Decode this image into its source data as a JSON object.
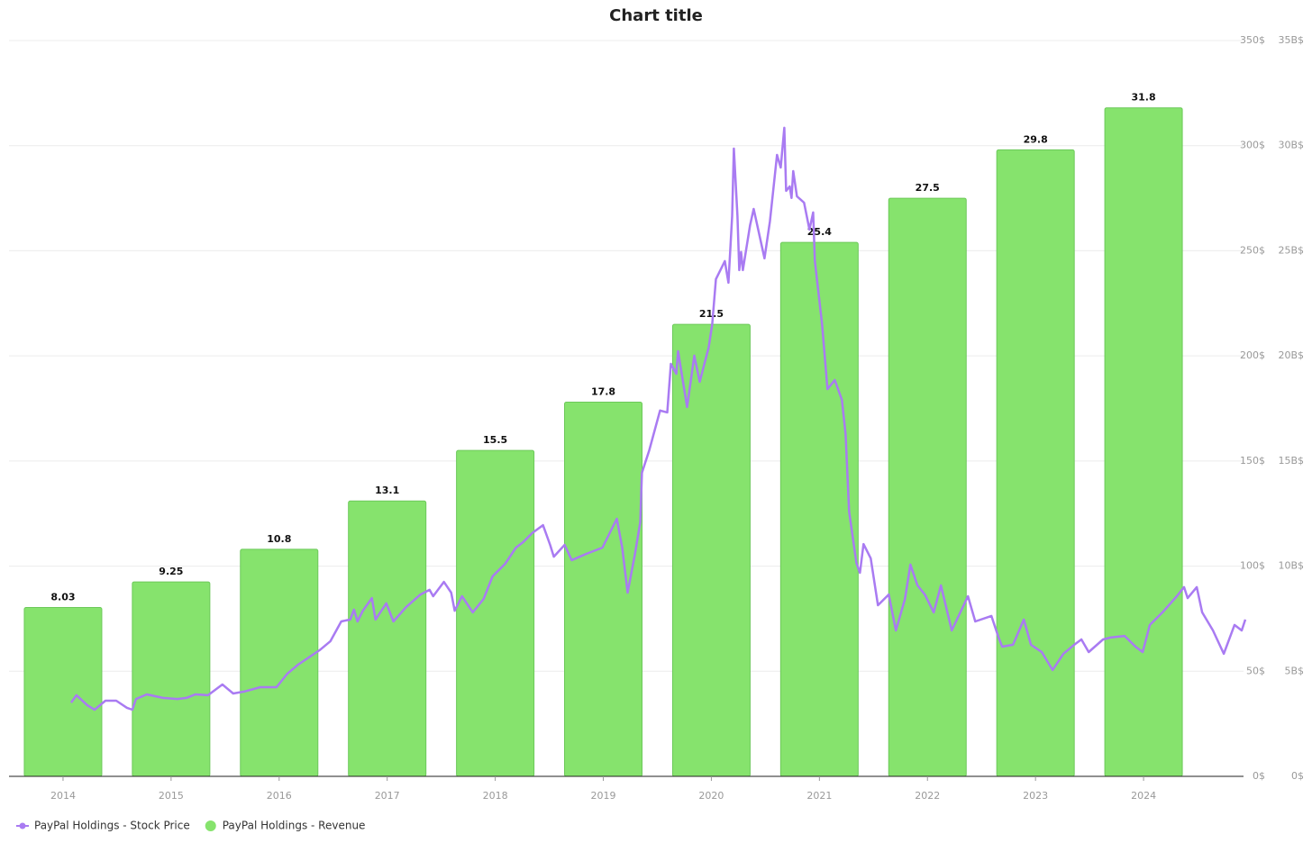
{
  "chart_data": {
    "type": "combo",
    "title": "Chart title",
    "xlim": [
      2013.5,
      2024.925
    ],
    "xticks": [
      2014,
      2015,
      2016,
      2017,
      2018,
      2019,
      2020,
      2021,
      2022,
      2023,
      2024
    ],
    "ylim": [
      0,
      350
    ],
    "yticks": [
      {
        "value": 0,
        "label": "0$"
      },
      {
        "value": 50,
        "label": "50$"
      },
      {
        "value": 100,
        "label": "100$"
      },
      {
        "value": 150,
        "label": "150$"
      },
      {
        "value": 200,
        "label": "200$"
      },
      {
        "value": 250,
        "label": "250$"
      },
      {
        "value": 300,
        "label": "300$"
      },
      {
        "value": 350,
        "label": "350$"
      }
    ],
    "y2lim": [
      0,
      35
    ],
    "y2ticks": [
      {
        "value": 0,
        "label": "0$"
      },
      {
        "value": 5,
        "label": "5B$"
      },
      {
        "value": 10,
        "label": "10B$"
      },
      {
        "value": 15,
        "label": "15B$"
      },
      {
        "value": 20,
        "label": "20B$"
      },
      {
        "value": 25,
        "label": "25B$"
      },
      {
        "value": 30,
        "label": "30B$"
      },
      {
        "value": 35,
        "label": "35B$"
      }
    ],
    "grid": true,
    "legend": "bottom-left",
    "series": [
      {
        "name": "PayPal Holdings - Stock Price",
        "type": "line",
        "axis": "y",
        "color": "#a97bf2",
        "x": [
          2014.075,
          2014.125,
          2014.225,
          2014.292,
          2014.392,
          2014.492,
          2014.592,
          2014.642,
          2014.675,
          2014.775,
          2014.925,
          2015.058,
          2015.142,
          2015.225,
          2015.342,
          2015.475,
          2015.575,
          2015.675,
          2015.825,
          2015.975,
          2016.075,
          2016.175,
          2016.275,
          2016.375,
          2016.475,
          2016.575,
          2016.658,
          2016.692,
          2016.725,
          2016.775,
          2016.858,
          2016.892,
          2016.992,
          2017.058,
          2017.175,
          2017.308,
          2017.392,
          2017.425,
          2017.525,
          2017.592,
          2017.625,
          2017.692,
          2017.792,
          2017.892,
          2017.975,
          2018.092,
          2018.192,
          2018.258,
          2018.342,
          2018.442,
          2018.508,
          2018.542,
          2018.642,
          2018.708,
          2018.842,
          2018.992,
          2019.125,
          2019.175,
          2019.225,
          2019.292,
          2019.342,
          2019.358,
          2019.425,
          2019.525,
          2019.592,
          2019.625,
          2019.675,
          2019.692,
          2019.775,
          2019.842,
          2019.892,
          2019.975,
          2020.008,
          2020.042,
          2020.125,
          2020.158,
          2020.192,
          2020.208,
          2020.242,
          2020.258,
          2020.275,
          2020.292,
          2020.358,
          2020.392,
          2020.492,
          2020.542,
          2020.608,
          2020.642,
          2020.675,
          2020.692,
          2020.725,
          2020.742,
          2020.758,
          2020.792,
          2020.858,
          2020.908,
          2020.942,
          2020.958,
          2021.025,
          2021.075,
          2021.142,
          2021.208,
          2021.242,
          2021.275,
          2021.342,
          2021.375,
          2021.408,
          2021.475,
          2021.542,
          2021.642,
          2021.708,
          2021.792,
          2021.842,
          2021.908,
          2021.975,
          2022.058,
          2022.125,
          2022.225,
          2022.375,
          2022.442,
          2022.592,
          2022.658,
          2022.692,
          2022.792,
          2022.892,
          2022.958,
          2023.058,
          2023.158,
          2023.258,
          2023.358,
          2023.425,
          2023.492,
          2023.625,
          2023.692,
          2023.825,
          2023.925,
          2023.992,
          2024.058,
          2024.175,
          2024.308,
          2024.375,
          2024.408,
          2024.492,
          2024.542,
          2024.642,
          2024.742,
          2024.842,
          2024.908,
          2024.942
        ],
        "values": [
          35.1,
          38.6,
          33.8,
          31.7,
          36.0,
          36.0,
          32.6,
          31.7,
          36.8,
          39.0,
          37.3,
          36.8,
          37.3,
          39.0,
          38.6,
          43.7,
          39.4,
          40.3,
          42.4,
          42.4,
          48.8,
          53.1,
          56.6,
          60.0,
          64.3,
          73.7,
          74.6,
          79.3,
          73.7,
          78.8,
          84.8,
          74.6,
          82.3,
          73.7,
          80.5,
          86.5,
          88.7,
          85.7,
          92.5,
          87.4,
          78.8,
          85.7,
          78.0,
          84.4,
          95.1,
          101.1,
          108.8,
          111.4,
          115.7,
          119.5,
          110.1,
          104.5,
          110.1,
          102.8,
          105.8,
          108.8,
          122.5,
          108.8,
          87.4,
          105.4,
          120.8,
          144.4,
          155.1,
          174.0,
          173.1,
          196.2,
          191.5,
          202.2,
          175.7,
          200.1,
          187.7,
          203.9,
          215.1,
          236.5,
          245.1,
          234.8,
          266.5,
          298.6,
          266.5,
          240.8,
          249.4,
          240.8,
          262.2,
          269.9,
          246.4,
          263.9,
          295.6,
          289.6,
          308.5,
          278.5,
          280.6,
          275.1,
          287.9,
          275.9,
          272.9,
          260.1,
          268.2,
          245.1,
          215.1,
          184.2,
          188.5,
          179.1,
          162.8,
          126.0,
          101.5,
          96.8,
          110.5,
          103.7,
          81.4,
          86.5,
          69.4,
          84.4,
          100.7,
          90.8,
          86.5,
          78.0,
          90.8,
          69.4,
          85.7,
          73.7,
          76.3,
          66.0,
          61.7,
          62.6,
          74.6,
          62.6,
          59.1,
          50.6,
          58.3,
          62.6,
          65.1,
          59.1,
          65.1,
          66.0,
          66.8,
          61.7,
          59.1,
          72.0,
          78.0,
          85.7,
          90.0,
          84.8,
          90.0,
          78.0,
          69.4,
          58.3,
          72.0,
          69.4,
          74.6
        ]
      },
      {
        "name": "PayPal Holdings - Revenue",
        "type": "bar",
        "axis": "y2",
        "color": "#86e36d",
        "x": [
          2014,
          2015,
          2016,
          2017,
          2018,
          2019,
          2020,
          2021,
          2022,
          2023,
          2024
        ],
        "values": [
          8.03,
          9.25,
          10.8,
          13.1,
          15.5,
          17.8,
          21.5,
          25.4,
          27.5,
          29.8,
          31.8
        ]
      }
    ]
  }
}
